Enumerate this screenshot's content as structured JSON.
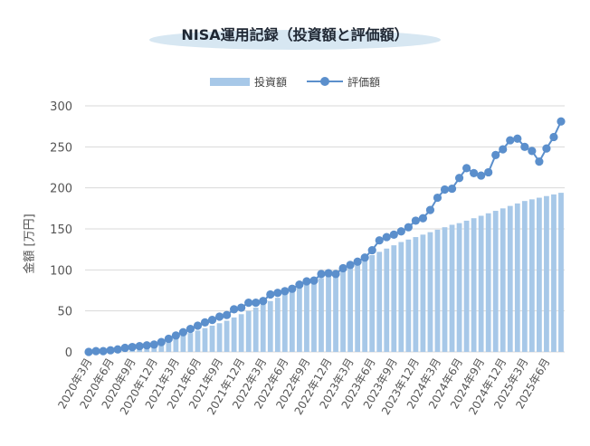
{
  "chart_data": {
    "type": "bar",
    "title": "NISA運用記録（投資額と評価額）",
    "ylabel": "金額 [万円]",
    "xlabel": "",
    "ylim": [
      0,
      300
    ],
    "yticks": [
      0,
      50,
      100,
      150,
      200,
      250,
      300
    ],
    "grid": "horizontal",
    "legend_position": "top",
    "colors": {
      "bar": "#a7c8e8",
      "line": "#5b8fcc",
      "grid": "#d9d9d9"
    },
    "x": [
      "2020年3月",
      "2020年4月",
      "2020年5月",
      "2020年6月",
      "2020年7月",
      "2020年8月",
      "2020年9月",
      "2020年10月",
      "2020年11月",
      "2020年12月",
      "2021年1月",
      "2021年2月",
      "2021年3月",
      "2021年4月",
      "2021年5月",
      "2021年6月",
      "2021年7月",
      "2021年8月",
      "2021年9月",
      "2021年10月",
      "2021年11月",
      "2021年12月",
      "2022年1月",
      "2022年2月",
      "2022年3月",
      "2022年4月",
      "2022年5月",
      "2022年6月",
      "2022年7月",
      "2022年8月",
      "2022年9月",
      "2022年10月",
      "2022年11月",
      "2022年12月",
      "2023年1月",
      "2023年2月",
      "2023年3月",
      "2023年4月",
      "2023年5月",
      "2023年6月",
      "2023年7月",
      "2023年8月",
      "2023年9月",
      "2023年10月",
      "2023年11月",
      "2023年12月",
      "2024年1月",
      "2024年2月",
      "2024年3月",
      "2024年4月",
      "2024年5月",
      "2024年6月",
      "2024年7月",
      "2024年8月",
      "2024年9月",
      "2024年10月",
      "2024年11月",
      "2024年12月",
      "2025年1月",
      "2025年2月",
      "2025年3月",
      "2025年4月",
      "2025年5月",
      "2025年6月",
      "2025年7月",
      "2025年8月"
    ],
    "tick_labels": [
      "2020年3月",
      "2020年6月",
      "2020年9月",
      "2020年12月",
      "2021年3月",
      "2021年6月",
      "2021年9月",
      "2021年12月",
      "2022年3月",
      "2022年6月",
      "2022年9月",
      "2022年12月",
      "2023年3月",
      "2023年6月",
      "2023年9月",
      "2023年12月",
      "2024年3月",
      "2024年6月",
      "2024年9月",
      "2024年12月",
      "2025年3月",
      "2025年6月"
    ],
    "tick_every": 3,
    "series": [
      {
        "name": "投資額",
        "kind": "bar",
        "values": [
          0,
          1,
          2,
          3,
          4,
          5,
          6,
          7,
          8,
          9,
          11,
          14,
          17,
          20,
          23,
          26,
          29,
          32,
          35,
          38,
          42,
          46,
          50,
          54,
          58,
          62,
          66,
          70,
          74,
          78,
          82,
          86,
          90,
          94,
          98,
          102,
          106,
          110,
          114,
          118,
          122,
          126,
          130,
          134,
          137,
          140,
          143,
          146,
          149,
          152,
          155,
          157,
          160,
          163,
          166,
          169,
          172,
          175,
          178,
          181,
          184,
          186,
          188,
          190,
          192,
          194
        ]
      },
      {
        "name": "評価額",
        "kind": "line",
        "values": [
          0,
          1,
          1,
          2,
          3,
          5,
          6,
          7,
          8,
          9,
          12,
          16,
          20,
          24,
          28,
          32,
          36,
          39,
          43,
          45,
          52,
          54,
          60,
          60,
          62,
          70,
          72,
          74,
          77,
          82,
          86,
          87,
          95,
          96,
          95,
          102,
          106,
          110,
          115,
          124,
          136,
          140,
          143,
          147,
          152,
          160,
          163,
          173,
          188,
          198,
          199,
          212,
          224,
          218,
          215,
          219,
          240,
          247,
          258,
          260,
          250,
          245,
          232,
          248,
          262,
          281
        ]
      }
    ]
  }
}
